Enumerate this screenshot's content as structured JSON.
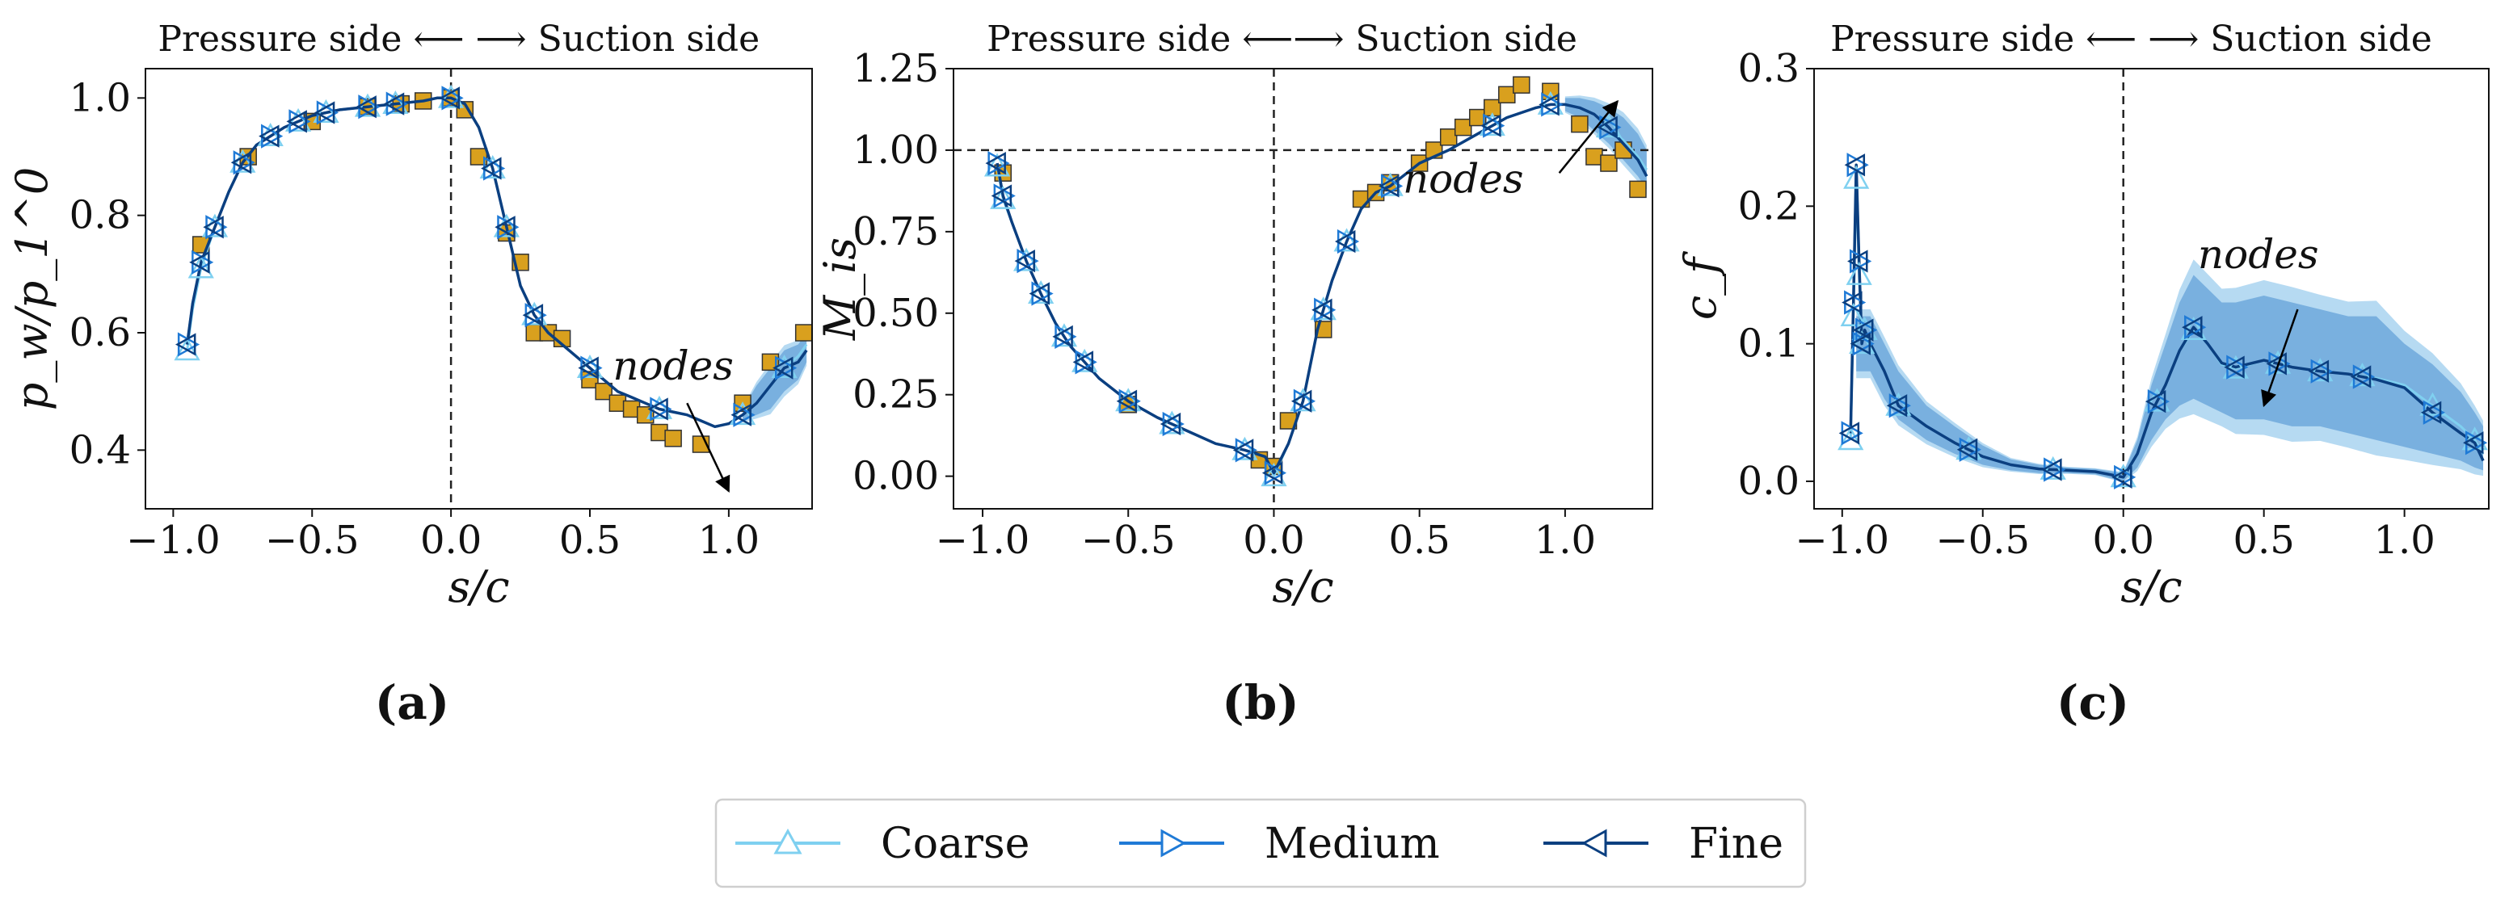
{
  "colors": {
    "coarse": "#7fd0f0",
    "medium": "#1f7ad6",
    "fine": "#0b3f80",
    "band_coarse": "#a9d3f0",
    "band_medium": "#6ea8dc",
    "experiment": "#d9a01e",
    "experiment_edge": "#333333"
  },
  "legend": {
    "entries": [
      {
        "label": "Coarse",
        "marker": "triangle-up"
      },
      {
        "label": "Medium",
        "marker": "triangle-right"
      },
      {
        "label": "Fine",
        "marker": "triangle-left"
      }
    ]
  },
  "chart_data": [
    {
      "type": "line",
      "panel": "(a)",
      "side_label": "Pressure side ⟵ ⟶ Suction side",
      "xlabel": "s/c",
      "ylabel": "p_w/p_1^0",
      "xlim": [
        -1.1,
        1.3
      ],
      "ylim": [
        0.3,
        1.05
      ],
      "xticks": [
        -1.0,
        -0.5,
        0.0,
        0.5,
        1.0
      ],
      "xtick_labels": [
        "−1.0",
        "−0.5",
        "0.0",
        "0.5",
        "1.0"
      ],
      "yticks": [
        0.4,
        0.6,
        0.8,
        1.0
      ],
      "ytick_labels": [
        "0.4",
        "0.6",
        "0.8",
        "1.0"
      ],
      "vline": 0.0,
      "hline": null,
      "annotation": {
        "text": "nodes",
        "text_at": [
          0.8,
          0.52
        ],
        "arrow_from": [
          0.85,
          0.48
        ],
        "arrow_to": [
          1.0,
          0.33
        ]
      },
      "x": [
        -0.95,
        -0.93,
        -0.9,
        -0.85,
        -0.8,
        -0.75,
        -0.7,
        -0.6,
        -0.5,
        -0.4,
        -0.3,
        -0.2,
        -0.1,
        -0.05,
        0.0,
        0.05,
        0.1,
        0.15,
        0.2,
        0.25,
        0.3,
        0.35,
        0.4,
        0.45,
        0.5,
        0.55,
        0.6,
        0.65,
        0.7,
        0.75,
        0.8,
        0.85,
        0.9,
        0.95,
        1.0,
        1.05,
        1.1,
        1.15,
        1.2,
        1.25,
        1.28
      ],
      "series": [
        {
          "name": "Coarse",
          "values": [
            0.57,
            0.64,
            0.71,
            0.78,
            0.84,
            0.89,
            0.92,
            0.95,
            0.97,
            0.98,
            0.985,
            0.99,
            0.995,
            1.0,
            1.0,
            0.99,
            0.95,
            0.88,
            0.78,
            0.68,
            0.63,
            0.6,
            0.58,
            0.56,
            0.54,
            0.52,
            0.5,
            0.49,
            0.48,
            0.47,
            0.465,
            0.46,
            0.45,
            0.44,
            0.445,
            0.46,
            0.48,
            0.51,
            0.54,
            0.56,
            0.58
          ]
        },
        {
          "name": "Medium",
          "values": [
            0.58,
            0.65,
            0.72,
            0.78,
            0.84,
            0.89,
            0.92,
            0.95,
            0.97,
            0.98,
            0.985,
            0.99,
            0.995,
            1.0,
            1.0,
            0.99,
            0.95,
            0.88,
            0.78,
            0.68,
            0.63,
            0.6,
            0.58,
            0.56,
            0.54,
            0.52,
            0.5,
            0.49,
            0.48,
            0.47,
            0.465,
            0.46,
            0.45,
            0.44,
            0.445,
            0.46,
            0.48,
            0.51,
            0.54,
            0.55,
            0.57
          ]
        },
        {
          "name": "Fine",
          "values": [
            0.58,
            0.65,
            0.72,
            0.78,
            0.84,
            0.89,
            0.92,
            0.95,
            0.97,
            0.98,
            0.985,
            0.99,
            0.995,
            1.0,
            1.0,
            0.99,
            0.95,
            0.88,
            0.78,
            0.68,
            0.63,
            0.6,
            0.58,
            0.56,
            0.54,
            0.52,
            0.5,
            0.49,
            0.48,
            0.47,
            0.465,
            0.46,
            0.45,
            0.44,
            0.445,
            0.46,
            0.48,
            0.51,
            0.54,
            0.55,
            0.57
          ]
        }
      ],
      "band": {
        "x": [
          1.05,
          1.1,
          1.15,
          1.2,
          1.25,
          1.28
        ],
        "lower": [
          0.45,
          0.46,
          0.47,
          0.5,
          0.52,
          0.55
        ],
        "upper": [
          0.47,
          0.51,
          0.54,
          0.57,
          0.58,
          0.6
        ]
      },
      "marker_x": [
        -0.95,
        -0.9,
        -0.85,
        -0.75,
        -0.65,
        -0.55,
        -0.45,
        -0.3,
        -0.2,
        0.0,
        0.15,
        0.2,
        0.3,
        0.5,
        0.75,
        1.05,
        1.2
      ],
      "experiment": {
        "x": [
          -0.9,
          -0.73,
          -0.5,
          -0.3,
          -0.18,
          -0.1,
          0.0,
          0.05,
          0.1,
          0.2,
          0.25,
          0.3,
          0.35,
          0.4,
          0.5,
          0.55,
          0.6,
          0.65,
          0.7,
          0.75,
          0.8,
          0.9,
          1.05,
          1.15,
          1.27
        ],
        "y": [
          0.75,
          0.9,
          0.96,
          0.985,
          0.99,
          0.995,
          1.0,
          0.98,
          0.9,
          0.77,
          0.72,
          0.6,
          0.6,
          0.59,
          0.52,
          0.5,
          0.48,
          0.47,
          0.46,
          0.43,
          0.42,
          0.41,
          0.48,
          0.55,
          0.6
        ]
      }
    },
    {
      "type": "line",
      "panel": "(b)",
      "side_label": "Pressure side ⟵⟶ Suction side",
      "xlabel": "s/c",
      "ylabel": "M_is",
      "xlim": [
        -1.1,
        1.3
      ],
      "ylim": [
        -0.1,
        1.25
      ],
      "xticks": [
        -1.0,
        -0.5,
        0.0,
        0.5,
        1.0
      ],
      "xtick_labels": [
        "−1.0",
        "−0.5",
        "0.0",
        "0.5",
        "1.0"
      ],
      "yticks": [
        0.0,
        0.25,
        0.5,
        0.75,
        1.0,
        1.25
      ],
      "ytick_labels": [
        "0.00",
        "0.25",
        "0.50",
        "0.75",
        "1.00",
        "1.25"
      ],
      "vline": 0.0,
      "hline": 1.0,
      "annotation": {
        "text": "nodes",
        "text_at": [
          0.65,
          0.87
        ],
        "arrow_from": [
          0.98,
          0.93
        ],
        "arrow_to": [
          1.18,
          1.15
        ]
      },
      "x": [
        -0.95,
        -0.93,
        -0.9,
        -0.85,
        -0.8,
        -0.75,
        -0.7,
        -0.6,
        -0.5,
        -0.4,
        -0.3,
        -0.2,
        -0.1,
        -0.03,
        0.0,
        0.05,
        0.1,
        0.15,
        0.2,
        0.25,
        0.3,
        0.35,
        0.4,
        0.5,
        0.6,
        0.7,
        0.8,
        0.9,
        0.95,
        1.0,
        1.05,
        1.1,
        1.15,
        1.2,
        1.25,
        1.28
      ],
      "series": [
        {
          "name": "Coarse",
          "values": [
            0.95,
            0.85,
            0.78,
            0.66,
            0.56,
            0.47,
            0.4,
            0.3,
            0.23,
            0.18,
            0.14,
            0.1,
            0.08,
            0.06,
            0.0,
            0.1,
            0.23,
            0.45,
            0.6,
            0.72,
            0.82,
            0.87,
            0.89,
            0.96,
            1.0,
            1.05,
            1.1,
            1.13,
            1.14,
            1.14,
            1.13,
            1.11,
            1.07,
            1.03,
            0.98,
            0.94
          ]
        },
        {
          "name": "Medium",
          "values": [
            0.96,
            0.86,
            0.78,
            0.66,
            0.56,
            0.47,
            0.4,
            0.3,
            0.23,
            0.18,
            0.14,
            0.1,
            0.08,
            0.06,
            0.01,
            0.1,
            0.23,
            0.45,
            0.6,
            0.72,
            0.82,
            0.87,
            0.89,
            0.96,
            1.0,
            1.05,
            1.1,
            1.13,
            1.14,
            1.14,
            1.13,
            1.11,
            1.07,
            1.02,
            0.97,
            0.92
          ]
        },
        {
          "name": "Fine",
          "values": [
            0.96,
            0.86,
            0.78,
            0.66,
            0.56,
            0.47,
            0.4,
            0.3,
            0.23,
            0.18,
            0.14,
            0.1,
            0.08,
            0.06,
            0.01,
            0.1,
            0.23,
            0.45,
            0.6,
            0.72,
            0.82,
            0.87,
            0.89,
            0.96,
            1.0,
            1.05,
            1.1,
            1.13,
            1.14,
            1.14,
            1.13,
            1.11,
            1.07,
            1.02,
            0.97,
            0.92
          ]
        }
      ],
      "band": {
        "x": [
          1.0,
          1.05,
          1.1,
          1.15,
          1.2,
          1.25,
          1.28
        ],
        "lower": [
          1.12,
          1.1,
          1.06,
          1.02,
          0.97,
          0.92,
          0.88
        ],
        "upper": [
          1.16,
          1.16,
          1.15,
          1.13,
          1.1,
          1.05,
          1.0
        ]
      },
      "marker_x": [
        -0.95,
        -0.93,
        -0.85,
        -0.8,
        -0.72,
        -0.65,
        -0.5,
        -0.35,
        -0.1,
        0.0,
        0.1,
        0.17,
        0.25,
        0.4,
        0.75,
        0.95,
        1.15
      ],
      "experiment": {
        "x": [
          -0.93,
          -0.5,
          -0.05,
          0.0,
          0.05,
          0.17,
          0.3,
          0.35,
          0.4,
          0.5,
          0.55,
          0.6,
          0.65,
          0.7,
          0.75,
          0.8,
          0.85,
          0.95,
          1.05,
          1.1,
          1.15,
          1.2,
          1.25
        ],
        "y": [
          0.93,
          0.22,
          0.05,
          0.03,
          0.17,
          0.45,
          0.85,
          0.87,
          0.9,
          0.96,
          1.0,
          1.04,
          1.07,
          1.1,
          1.13,
          1.17,
          1.2,
          1.18,
          1.08,
          0.98,
          0.96,
          1.0,
          0.88
        ]
      }
    },
    {
      "type": "line",
      "panel": "(c)",
      "side_label": "Pressure side ⟵ ⟶ Suction side",
      "xlabel": "s/c",
      "ylabel": "c_f",
      "xlim": [
        -1.1,
        1.3
      ],
      "ylim": [
        -0.02,
        0.3
      ],
      "xticks": [
        -1.0,
        -0.5,
        0.0,
        0.5,
        1.0
      ],
      "xtick_labels": [
        "−1.0",
        "−0.5",
        "0.0",
        "0.5",
        "1.0"
      ],
      "yticks": [
        0.0,
        0.1,
        0.2,
        0.3
      ],
      "ytick_labels": [
        "0.0",
        "0.1",
        "0.2",
        "0.3"
      ],
      "vline": 0.0,
      "hline": null,
      "annotation": {
        "text": "nodes",
        "text_at": [
          0.48,
          0.155
        ],
        "arrow_from": [
          0.62,
          0.125
        ],
        "arrow_to": [
          0.5,
          0.055
        ]
      },
      "x": [
        -0.97,
        -0.96,
        -0.95,
        -0.94,
        -0.93,
        -0.92,
        -0.9,
        -0.85,
        -0.8,
        -0.7,
        -0.6,
        -0.5,
        -0.4,
        -0.3,
        -0.2,
        -0.1,
        0.0,
        0.05,
        0.1,
        0.15,
        0.2,
        0.25,
        0.3,
        0.35,
        0.4,
        0.5,
        0.6,
        0.7,
        0.8,
        0.9,
        1.0,
        1.1,
        1.2,
        1.25,
        1.28
      ],
      "series": [
        {
          "name": "Coarse",
          "values": [
            0.03,
            0.12,
            0.22,
            0.15,
            0.1,
            0.11,
            0.1,
            0.08,
            0.055,
            0.04,
            0.028,
            0.018,
            0.012,
            0.009,
            0.008,
            0.007,
            0.003,
            0.02,
            0.05,
            0.07,
            0.095,
            0.11,
            0.1,
            0.085,
            0.082,
            0.088,
            0.083,
            0.08,
            0.078,
            0.075,
            0.07,
            0.055,
            0.04,
            0.03,
            0.02
          ]
        },
        {
          "name": "Medium",
          "values": [
            0.035,
            0.13,
            0.23,
            0.16,
            0.1,
            0.11,
            0.1,
            0.08,
            0.055,
            0.04,
            0.028,
            0.018,
            0.012,
            0.009,
            0.008,
            0.007,
            0.003,
            0.02,
            0.05,
            0.07,
            0.095,
            0.112,
            0.1,
            0.086,
            0.083,
            0.088,
            0.083,
            0.08,
            0.078,
            0.074,
            0.068,
            0.05,
            0.035,
            0.028,
            0.015
          ]
        },
        {
          "name": "Fine",
          "values": [
            0.035,
            0.13,
            0.23,
            0.16,
            0.1,
            0.11,
            0.1,
            0.08,
            0.055,
            0.04,
            0.028,
            0.018,
            0.012,
            0.009,
            0.008,
            0.007,
            0.003,
            0.02,
            0.05,
            0.07,
            0.095,
            0.112,
            0.1,
            0.086,
            0.083,
            0.088,
            0.083,
            0.08,
            0.078,
            0.074,
            0.068,
            0.05,
            0.035,
            0.028,
            0.015
          ]
        }
      ],
      "band": {
        "x": [
          -0.95,
          -0.9,
          -0.85,
          -0.8,
          -0.7,
          -0.6,
          -0.5,
          -0.4,
          -0.3,
          -0.2,
          -0.1,
          0.0,
          0.05,
          0.1,
          0.15,
          0.2,
          0.25,
          0.3,
          0.35,
          0.4,
          0.5,
          0.6,
          0.7,
          0.8,
          0.9,
          1.0,
          1.1,
          1.2,
          1.25,
          1.28
        ],
        "lower": [
          0.08,
          0.08,
          0.06,
          0.045,
          0.03,
          0.02,
          0.012,
          0.008,
          0.006,
          0.006,
          0.005,
          0.0,
          0.01,
          0.03,
          0.045,
          0.055,
          0.06,
          0.055,
          0.05,
          0.045,
          0.045,
          0.04,
          0.04,
          0.035,
          0.03,
          0.025,
          0.02,
          0.015,
          0.01,
          0.008
        ],
        "upper": [
          0.12,
          0.12,
          0.1,
          0.08,
          0.055,
          0.04,
          0.026,
          0.016,
          0.012,
          0.01,
          0.009,
          0.006,
          0.03,
          0.07,
          0.1,
          0.13,
          0.15,
          0.14,
          0.13,
          0.13,
          0.135,
          0.13,
          0.125,
          0.12,
          0.12,
          0.1,
          0.085,
          0.065,
          0.05,
          0.04
        ]
      },
      "marker_x": [
        -0.97,
        -0.96,
        -0.95,
        -0.94,
        -0.93,
        -0.92,
        -0.8,
        -0.55,
        -0.25,
        0.0,
        0.12,
        0.25,
        0.4,
        0.55,
        0.7,
        0.85,
        1.1,
        1.25
      ],
      "experiment": null
    }
  ]
}
